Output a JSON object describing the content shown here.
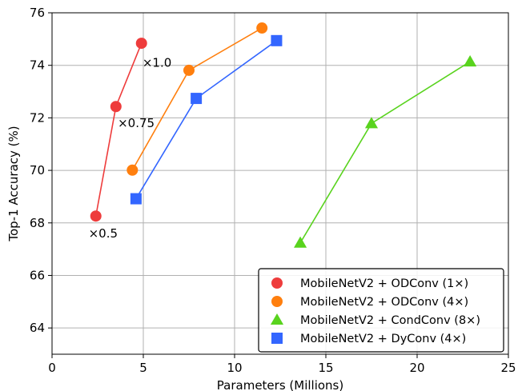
{
  "chart_data": {
    "type": "line",
    "xlabel": "Parameters (Millions)",
    "ylabel": "Top-1 Accuracy (%)",
    "xlim": [
      0,
      25
    ],
    "ylim": [
      63,
      76
    ],
    "xticks": [
      0,
      5,
      10,
      15,
      20,
      25
    ],
    "yticks": [
      64,
      66,
      68,
      70,
      72,
      74,
      76
    ],
    "grid": true,
    "legend_position": "bottom-right",
    "series": [
      {
        "name": "MobileNetV2 + ODConv (1×)",
        "color": "#ee3c3c",
        "marker": "circle",
        "x": [
          2.4,
          3.5,
          4.9
        ],
        "y": [
          68.26,
          72.43,
          74.84
        ]
      },
      {
        "name": "MobileNetV2 + ODConv (4×)",
        "color": "#ff7f0e",
        "marker": "circle",
        "x": [
          4.4,
          7.5,
          11.5
        ],
        "y": [
          70.01,
          73.81,
          75.42
        ]
      },
      {
        "name": "MobileNetV2 + CondConv (8×)",
        "color": "#59d31e",
        "marker": "triangle",
        "x": [
          13.6,
          17.5,
          22.9
        ],
        "y": [
          67.24,
          71.79,
          74.14
        ]
      },
      {
        "name": "MobileNetV2 + DyConv (4×)",
        "color": "#3366ff",
        "marker": "square",
        "x": [
          4.6,
          7.9,
          12.3
        ],
        "y": [
          68.92,
          72.74,
          74.94
        ]
      }
    ],
    "annotations": [
      {
        "text": "×0.5",
        "x": 2.0,
        "y": 67.6
      },
      {
        "text": "×0.75",
        "x": 3.6,
        "y": 71.8
      },
      {
        "text": "×1.0",
        "x": 4.95,
        "y": 74.1
      }
    ]
  }
}
